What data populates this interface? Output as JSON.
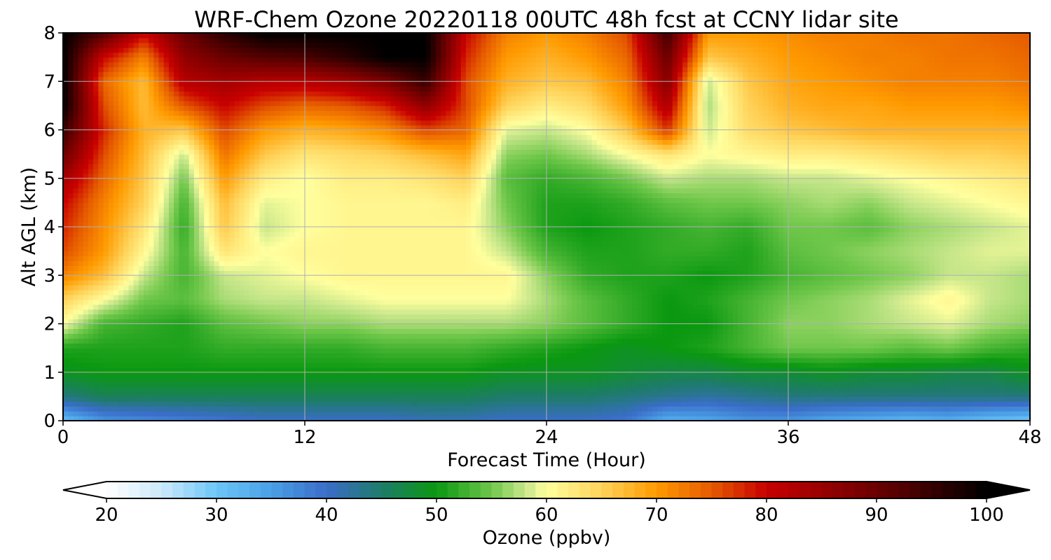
{
  "chart_data": {
    "type": "heatmap",
    "title": "WRF-Chem Ozone  20220118 00UTC 48h fcst at CCNY lidar site",
    "xlabel": "Forecast Time (Hour)",
    "ylabel": "Alt AGL (km)",
    "xlim": [
      0,
      48
    ],
    "ylim": [
      0,
      8
    ],
    "x_ticks": [
      0,
      12,
      24,
      36,
      48
    ],
    "y_ticks": [
      0,
      1,
      2,
      3,
      4,
      5,
      6,
      7,
      8
    ],
    "grid": true,
    "x": [
      0,
      2,
      4,
      6,
      8,
      10,
      12,
      14,
      16,
      18,
      20,
      22,
      24,
      26,
      28,
      30,
      32,
      34,
      36,
      38,
      40,
      42,
      44,
      46,
      48
    ],
    "y": [
      0,
      0.5,
      1,
      1.5,
      2,
      2.5,
      3,
      3.5,
      4,
      4.5,
      5,
      5.5,
      6,
      6.5,
      7,
      7.5,
      8
    ],
    "z": [
      [
        31,
        36,
        37,
        38,
        39,
        40,
        40,
        40,
        40,
        41,
        41,
        40,
        40,
        40,
        39,
        33,
        34,
        36,
        36,
        34,
        33,
        32,
        33,
        31,
        30
      ],
      [
        44,
        46,
        46,
        46,
        46,
        46,
        46,
        46,
        46,
        46,
        46,
        45,
        45,
        45,
        44,
        43,
        42,
        43,
        44,
        44,
        44,
        44,
        44,
        44,
        44
      ],
      [
        49,
        50,
        50,
        50,
        50,
        50,
        50,
        50,
        50,
        50,
        50,
        49,
        49,
        49,
        48,
        47,
        47,
        48,
        48,
        49,
        48,
        48,
        47,
        47,
        49
      ],
      [
        51,
        51,
        51,
        51,
        52,
        52,
        52,
        52,
        53,
        53,
        53,
        52,
        51,
        50,
        49,
        50,
        51,
        53,
        55,
        55,
        55,
        54,
        55,
        53,
        52
      ],
      [
        60,
        53,
        52,
        51,
        54,
        55,
        56,
        56,
        57,
        57,
        57,
        57,
        56,
        54,
        52,
        50,
        50,
        53,
        56,
        56,
        57,
        58,
        59,
        57,
        56
      ],
      [
        65,
        60,
        55,
        54,
        57,
        58,
        58,
        59,
        60,
        60,
        60,
        60,
        57,
        54,
        52,
        50,
        51,
        53,
        55,
        56,
        57,
        59,
        61,
        58,
        57
      ],
      [
        72,
        67,
        58,
        53,
        58,
        59,
        60,
        61,
        61,
        61,
        61,
        61,
        56,
        52,
        51,
        51,
        50,
        51,
        53,
        54,
        55,
        56,
        58,
        58,
        57
      ],
      [
        76,
        70,
        61,
        53,
        63,
        60,
        61,
        61,
        61,
        61,
        61,
        58,
        53,
        51,
        51,
        52,
        52,
        51,
        54,
        55,
        56,
        57,
        58,
        59,
        59
      ],
      [
        78,
        71,
        63,
        52,
        66,
        58,
        60,
        61,
        61,
        61,
        61,
        56,
        51,
        50,
        51,
        52,
        53,
        52,
        55,
        55,
        54,
        56,
        57,
        58,
        59
      ],
      [
        80,
        72,
        65,
        53,
        67,
        59,
        60,
        61,
        61,
        61,
        62,
        55,
        51,
        51,
        52,
        54,
        55,
        55,
        56,
        57,
        56,
        58,
        59,
        60,
        61
      ],
      [
        84,
        74,
        66,
        55,
        70,
        62,
        60,
        62,
        62,
        63,
        65,
        54,
        52,
        53,
        55,
        58,
        57,
        57,
        58,
        58,
        59,
        60,
        61,
        62,
        63
      ],
      [
        90,
        76,
        67,
        58,
        73,
        66,
        63,
        64,
        65,
        67,
        69,
        56,
        55,
        57,
        60,
        63,
        60,
        61,
        62,
        62,
        63,
        64,
        65,
        65,
        66
      ],
      [
        95,
        78,
        68,
        66,
        76,
        70,
        68,
        69,
        71,
        76,
        74,
        59,
        58,
        60,
        66,
        77,
        58,
        64,
        66,
        67,
        68,
        68,
        68,
        68,
        68
      ],
      [
        100,
        76,
        67,
        75,
        80,
        76,
        74,
        75,
        78,
        86,
        76,
        65,
        62,
        64,
        70,
        83,
        57,
        65,
        68,
        69,
        69,
        70,
        70,
        70,
        71
      ],
      [
        100,
        74,
        67,
        82,
        84,
        82,
        82,
        84,
        88,
        95,
        76,
        68,
        66,
        67,
        72,
        87,
        58,
        66,
        69,
        70,
        71,
        72,
        72,
        72,
        73
      ],
      [
        100,
        80,
        72,
        86,
        90,
        92,
        93,
        96,
        100,
        100,
        78,
        70,
        68,
        70,
        74,
        90,
        66,
        68,
        70,
        71,
        72,
        72,
        73,
        73,
        74
      ],
      [
        100,
        92,
        80,
        90,
        96,
        100,
        100,
        100,
        100,
        100,
        80,
        72,
        70,
        72,
        76,
        94,
        70,
        70,
        71,
        72,
        72,
        73,
        73,
        74,
        75
      ]
    ],
    "colorbar": {
      "label": "Ozone  (ppbv)",
      "min": 20,
      "max": 100,
      "ticks": [
        20,
        30,
        40,
        50,
        60,
        70,
        80,
        90,
        100
      ],
      "extend": "both",
      "color_stops": [
        [
          20,
          "#ffffff"
        ],
        [
          25,
          "#cce9fb"
        ],
        [
          30,
          "#6cc6f7"
        ],
        [
          35,
          "#4a9fe6"
        ],
        [
          40,
          "#3a6dc8"
        ],
        [
          45,
          "#1e7b6a"
        ],
        [
          50,
          "#0a9810"
        ],
        [
          55,
          "#6fc74a"
        ],
        [
          58,
          "#c6e68a"
        ],
        [
          60,
          "#ffff9e"
        ],
        [
          65,
          "#ffd35a"
        ],
        [
          70,
          "#ff9a00"
        ],
        [
          75,
          "#e55a00"
        ],
        [
          80,
          "#c80000"
        ],
        [
          90,
          "#6a0000"
        ],
        [
          100,
          "#000000"
        ]
      ]
    }
  }
}
